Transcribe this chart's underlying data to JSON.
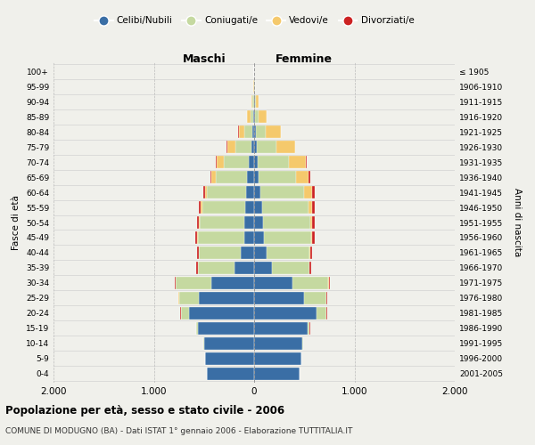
{
  "age_groups": [
    "0-4",
    "5-9",
    "10-14",
    "15-19",
    "20-24",
    "25-29",
    "30-34",
    "35-39",
    "40-44",
    "45-49",
    "50-54",
    "55-59",
    "60-64",
    "65-69",
    "70-74",
    "75-79",
    "80-84",
    "85-89",
    "90-94",
    "95-99",
    "100+"
  ],
  "birth_years": [
    "2001-2005",
    "1996-2000",
    "1991-1995",
    "1986-1990",
    "1981-1985",
    "1976-1980",
    "1971-1975",
    "1966-1970",
    "1961-1965",
    "1956-1960",
    "1951-1955",
    "1946-1950",
    "1941-1945",
    "1936-1940",
    "1931-1935",
    "1926-1930",
    "1921-1925",
    "1916-1920",
    "1911-1915",
    "1906-1910",
    "≤ 1905"
  ],
  "maschi_celibi": [
    470,
    490,
    500,
    560,
    650,
    550,
    430,
    200,
    130,
    100,
    95,
    90,
    80,
    75,
    55,
    30,
    15,
    8,
    4,
    2,
    2
  ],
  "maschi_coniugati": [
    0,
    0,
    5,
    20,
    80,
    200,
    350,
    360,
    420,
    460,
    450,
    430,
    390,
    310,
    250,
    160,
    80,
    30,
    10,
    2,
    0
  ],
  "maschi_vedovi": [
    0,
    0,
    0,
    0,
    2,
    2,
    2,
    2,
    3,
    5,
    8,
    10,
    20,
    40,
    70,
    80,
    60,
    30,
    10,
    2,
    0
  ],
  "maschi_divorziati": [
    0,
    0,
    0,
    2,
    4,
    6,
    10,
    12,
    15,
    18,
    20,
    20,
    15,
    12,
    8,
    4,
    2,
    2,
    0,
    0,
    0
  ],
  "femmine_nubili": [
    450,
    470,
    480,
    530,
    620,
    500,
    380,
    180,
    120,
    95,
    90,
    80,
    60,
    45,
    35,
    25,
    15,
    10,
    5,
    2,
    2
  ],
  "femmine_coniugate": [
    0,
    0,
    5,
    25,
    100,
    220,
    360,
    370,
    430,
    470,
    470,
    460,
    440,
    370,
    310,
    200,
    100,
    35,
    12,
    3,
    0
  ],
  "femmine_vedove": [
    0,
    0,
    0,
    0,
    3,
    4,
    4,
    5,
    8,
    12,
    20,
    40,
    80,
    130,
    170,
    180,
    150,
    80,
    30,
    5,
    2
  ],
  "femmine_divorziate": [
    0,
    0,
    0,
    2,
    5,
    8,
    12,
    15,
    20,
    25,
    28,
    28,
    20,
    15,
    8,
    5,
    3,
    2,
    0,
    0,
    0
  ],
  "colors": {
    "celibi_nubili": "#3a6ea5",
    "coniugati": "#c5d9a0",
    "vedovi": "#f5c96c",
    "divorziati": "#cc2222"
  },
  "xlim": 2000,
  "xticks": [
    -2000,
    -1000,
    0,
    1000,
    2000
  ],
  "xtick_labels": [
    "2.000",
    "1.000",
    "0",
    "1.000",
    "2.000"
  ],
  "title1": "Popolazione per età, sesso e stato civile - 2006",
  "title2": "COMUNE DI MODUGNO (BA) - Dati ISTAT 1° gennaio 2006 - Elaborazione TUTTITALIA.IT",
  "ylabel": "Fasce di età",
  "ylabel_right": "Anni di nascita",
  "legend_labels": [
    "Celibi/Nubili",
    "Coniugati/e",
    "Vedovi/e",
    "Divorziati/e"
  ],
  "maschi_label": "Maschi",
  "femmine_label": "Femmine",
  "background_color": "#f0f0eb"
}
